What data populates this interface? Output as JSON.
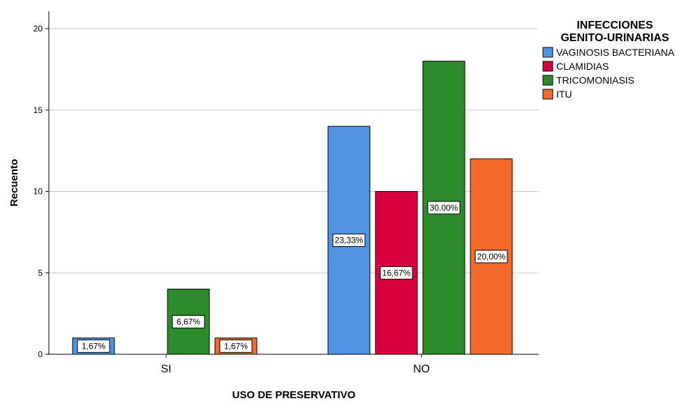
{
  "chart_data": {
    "type": "bar",
    "title": "",
    "xlabel": "USO DE PRESERVATIVO",
    "ylabel": "Recuento",
    "ylim": [
      0,
      21
    ],
    "yticks": [
      0,
      5,
      10,
      15,
      20
    ],
    "grid": true,
    "legend_position": "top-right",
    "legend_title_lines": [
      "INFECCIONES",
      "GENITO-URINARIAS"
    ],
    "categories": [
      "SI",
      "NO"
    ],
    "series": [
      {
        "name": "VAGINOSIS BACTERIANA",
        "color": "#5294e2",
        "values": [
          1,
          14
        ],
        "labels": [
          "1,67%",
          "23,33%"
        ]
      },
      {
        "name": "CLAMIDIAS",
        "color": "#d8003c",
        "values": [
          0,
          10
        ],
        "labels": [
          "",
          "16,67%"
        ]
      },
      {
        "name": "TRICOMONIASIS",
        "color": "#2d8a2d",
        "values": [
          4,
          18
        ],
        "labels": [
          "6,67%",
          "30,00%"
        ]
      },
      {
        "name": "ITU",
        "color": "#f36b2c",
        "values": [
          1,
          12
        ],
        "labels": [
          "1,67%",
          "20,00%"
        ]
      }
    ]
  }
}
